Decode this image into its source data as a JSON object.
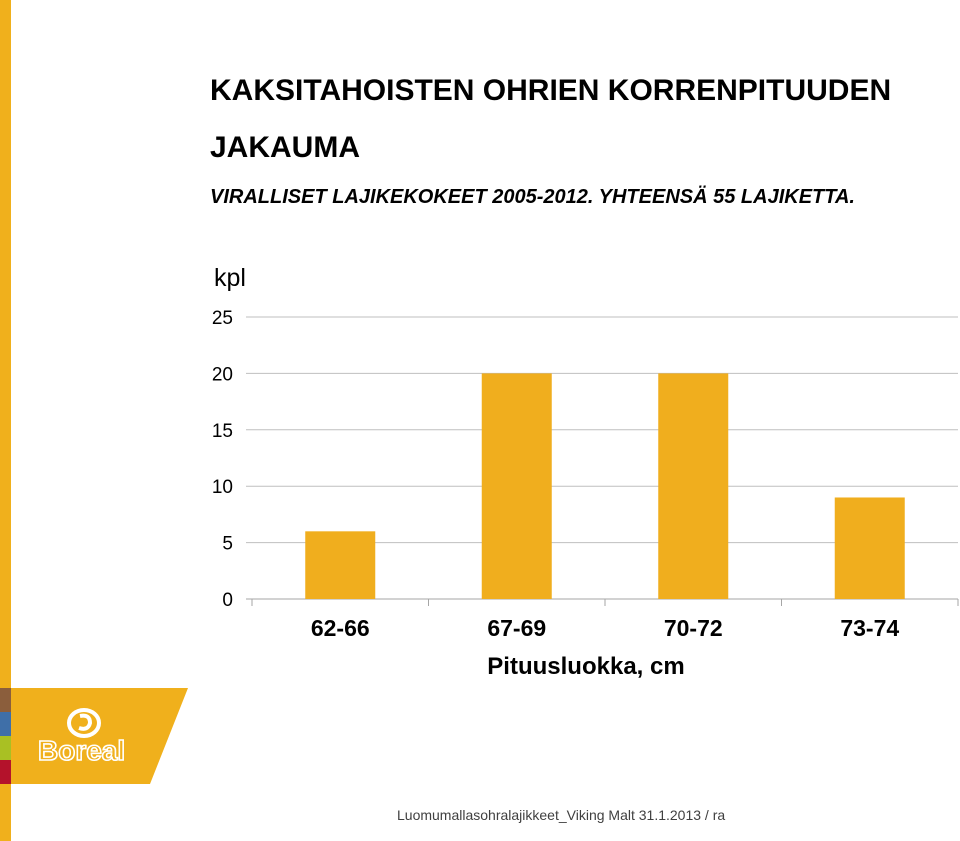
{
  "title": "KAKSITAHOISTEN OHRIEN KORRENPITUUDEN JAKAUMA",
  "subtitle": "VIRALLISET LAJIKEKOKEET 2005-2012. YHTEENSÄ 55 LAJIKETTA.",
  "logo": {
    "text": "Boreal",
    "icon": "boreal-swirl-icon"
  },
  "footer": "Luomumallasohralajikkeet_Viking Malt 31.1.2013 / ra",
  "colors": {
    "accent": "#f0b01c",
    "bar": "#f0ae1e",
    "brown": "#8b5e3c",
    "blue": "#3f6fa8",
    "green": "#a9c023",
    "red": "#b4122b"
  },
  "chart_data": {
    "type": "bar",
    "ylabel": "kpl",
    "xlabel": "Pituusluokka, cm",
    "categories": [
      "62-66",
      "67-69",
      "70-72",
      "73-74"
    ],
    "values": [
      6,
      20,
      20,
      9
    ],
    "ylim": [
      0,
      25
    ],
    "yticks": [
      0,
      5,
      10,
      15,
      20,
      25
    ],
    "grid": true
  }
}
